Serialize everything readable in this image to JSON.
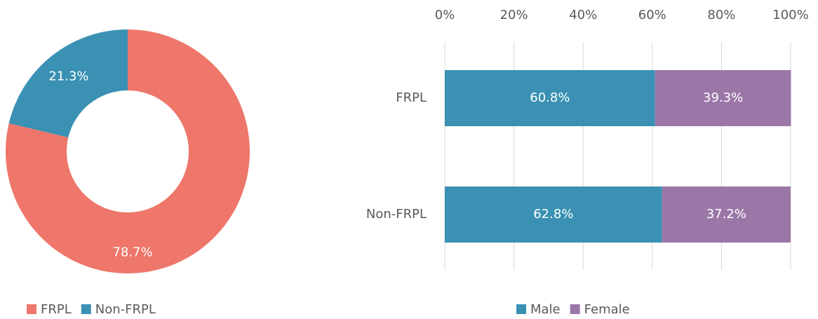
{
  "chart_data": [
    {
      "type": "donut",
      "categories": [
        "FRPL",
        "Non-FRPL"
      ],
      "values": [
        78.7,
        21.3
      ],
      "value_labels": [
        "78.7%",
        "21.3%"
      ],
      "colors": [
        "#ee766a",
        "#3a91b3"
      ],
      "legend": "bottom-left"
    },
    {
      "type": "bar",
      "orientation": "horizontal",
      "stacked": true,
      "categories": [
        "FRPL",
        "Non-FRPL"
      ],
      "series": [
        {
          "name": "Male",
          "color": "#3a91b3",
          "values": [
            60.8,
            62.8
          ],
          "value_labels": [
            "60.8%",
            "62.8%"
          ]
        },
        {
          "name": "Female",
          "color": "#9b77a8",
          "values": [
            39.3,
            37.2
          ],
          "value_labels": [
            "39.3%",
            "37.2%"
          ]
        }
      ],
      "xlim": [
        0,
        100
      ],
      "xticks": [
        {
          "value": 0,
          "label": "0%"
        },
        {
          "value": 20,
          "label": "20%"
        },
        {
          "value": 40,
          "label": "40%"
        },
        {
          "value": 60,
          "label": "60%"
        },
        {
          "value": 80,
          "label": "80%"
        },
        {
          "value": 100,
          "label": "100%"
        }
      ],
      "grid": true,
      "legend": "bottom"
    }
  ]
}
